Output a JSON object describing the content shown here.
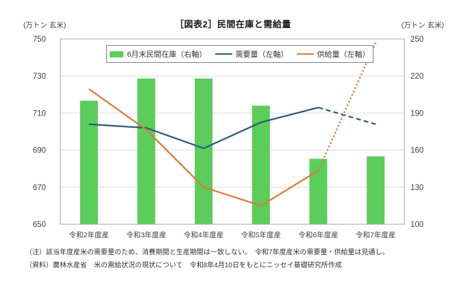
{
  "title": "［図表2］民間在庫と需給量",
  "notes": [
    "（注）該当年度産米の需要量のため、消費期間と生産期間は一致しない。　令和7年度産米の需要量・供給量は見通し。",
    "（資料）農林水産省　米の需給状況の現状について　令和8年4月10日をもとにニッセイ基礎研究所作成"
  ],
  "chart_data": {
    "type": "combo_bar_line",
    "title": "［図表2］民間在庫と需給量",
    "categories": [
      "令和2年度産",
      "令和3年度産",
      "令和4年度産",
      "令和5年度産",
      "令和6年度産",
      "令和7年度産"
    ],
    "series": [
      {
        "name": "6月末民間在庫（右軸）",
        "type": "bar",
        "axis": "right",
        "color": "#5bcd5b",
        "values": [
          200,
          218,
          218,
          196,
          153,
          155
        ]
      },
      {
        "name": "需要量（左軸）",
        "type": "line",
        "axis": "left",
        "color": "#2b5d7c",
        "values": [
          704,
          702,
          691,
          705,
          713,
          704
        ],
        "solid_until_index": 4,
        "forecast_style": "dashed"
      },
      {
        "name": "供給量（左軸）",
        "type": "line",
        "axis": "left",
        "color": "#dc7a3a",
        "values": [
          723,
          701,
          670,
          660,
          679,
          748
        ],
        "solid_until_index": 4,
        "forecast_style": "dotted"
      }
    ],
    "left_axis": {
      "unit": "(万トン 玄米)",
      "min": 650,
      "max": 750,
      "ticks": [
        750,
        730,
        710,
        690,
        670,
        650
      ]
    },
    "right_axis": {
      "unit": "(万トン 玄米)",
      "min": 100,
      "max": 250,
      "ticks": [
        250,
        220,
        190,
        160,
        130,
        100
      ]
    },
    "grid": true,
    "gridline_color": "#dcdcdc",
    "border_color": "#a6a6a6",
    "legend_position": "top-center-inside"
  }
}
